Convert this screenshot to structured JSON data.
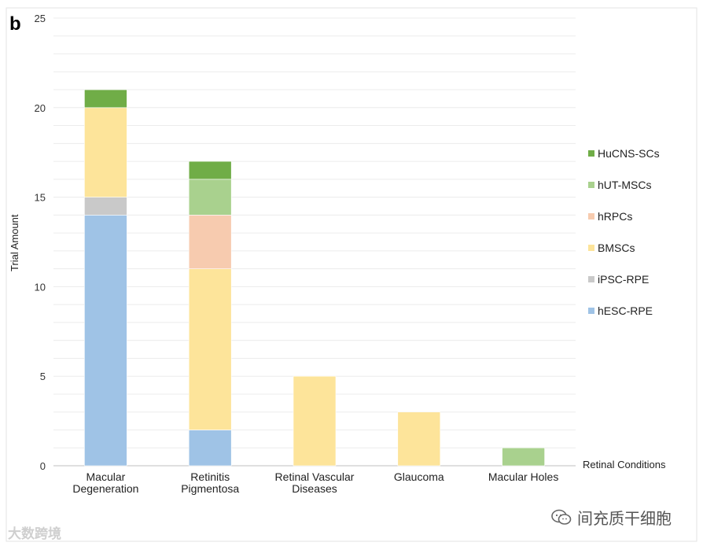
{
  "panel_label": "b",
  "watermarks": {
    "left": "大数跨境",
    "right": "间充质干细胞"
  },
  "chart_data": {
    "type": "bar",
    "stacked": true,
    "title": "",
    "xlabel": "Retinal Conditions",
    "ylabel": "Trial Amount",
    "ylim": [
      0,
      25
    ],
    "yticks": [
      0,
      5,
      10,
      15,
      20,
      25
    ],
    "grid": true,
    "legend_position": "right",
    "categories": [
      [
        "Macular",
        "Degeneration"
      ],
      [
        "Retinitis",
        "Pigmentosa"
      ],
      [
        "Retinal Vascular",
        "Diseases"
      ],
      [
        "Glaucoma"
      ],
      [
        "Macular Holes"
      ]
    ],
    "series": [
      {
        "name": "hESC-RPE",
        "color": "#9fc3e6",
        "values": [
          14,
          2,
          0,
          0,
          0
        ]
      },
      {
        "name": "iPSC-RPE",
        "color": "#c9c9c9",
        "values": [
          1,
          0,
          0,
          0,
          0
        ]
      },
      {
        "name": "BMSCs",
        "color": "#fde49a",
        "values": [
          5,
          9,
          5,
          3,
          0
        ]
      },
      {
        "name": "hRPCs",
        "color": "#f7cbaf",
        "values": [
          0,
          3,
          0,
          0,
          0
        ]
      },
      {
        "name": "hUT-MSCs",
        "color": "#a9d18e",
        "values": [
          0,
          2,
          0,
          0,
          1
        ]
      },
      {
        "name": "HuCNS-SCs",
        "color": "#70ad47",
        "values": [
          1,
          1,
          0,
          0,
          0
        ]
      }
    ]
  }
}
